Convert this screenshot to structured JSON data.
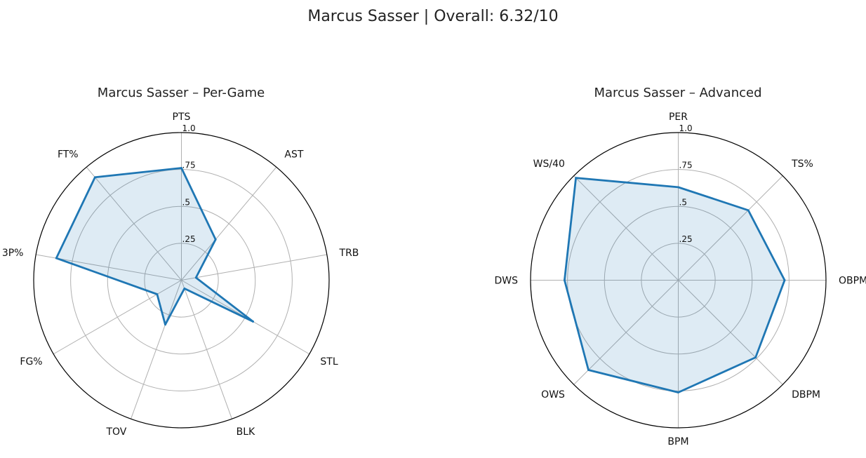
{
  "title": "Marcus Sasser | Overall: 6.32/10",
  "chart_data": [
    {
      "type": "radar",
      "title": "Marcus Sasser – Per-Game",
      "axes": [
        "PTS",
        "AST",
        "TRB",
        "STL",
        "BLK",
        "TOV",
        "FG%",
        "3P%",
        "FT%"
      ],
      "values": [
        0.76,
        0.36,
        0.1,
        0.56,
        0.06,
        0.32,
        0.19,
        0.86,
        0.91
      ],
      "r_ticks": [
        ".25",
        ".5",
        ".75",
        "1.0"
      ],
      "rlim": [
        0,
        1
      ],
      "grid": true,
      "color": "#1f77b4",
      "fill_color": "#1f77b4"
    },
    {
      "type": "radar",
      "title": "Marcus Sasser – Advanced",
      "axes": [
        "PER",
        "TS%",
        "OBPM",
        "DBPM",
        "BPM",
        "OWS",
        "DWS",
        "WS/40"
      ],
      "values": [
        0.63,
        0.67,
        0.72,
        0.74,
        0.76,
        0.86,
        0.77,
        0.98
      ],
      "r_ticks": [
        ".25",
        ".5",
        ".75",
        "1.0"
      ],
      "rlim": [
        0,
        1
      ],
      "grid": true,
      "color": "#1f77b4",
      "fill_color": "#1f77b4"
    }
  ]
}
